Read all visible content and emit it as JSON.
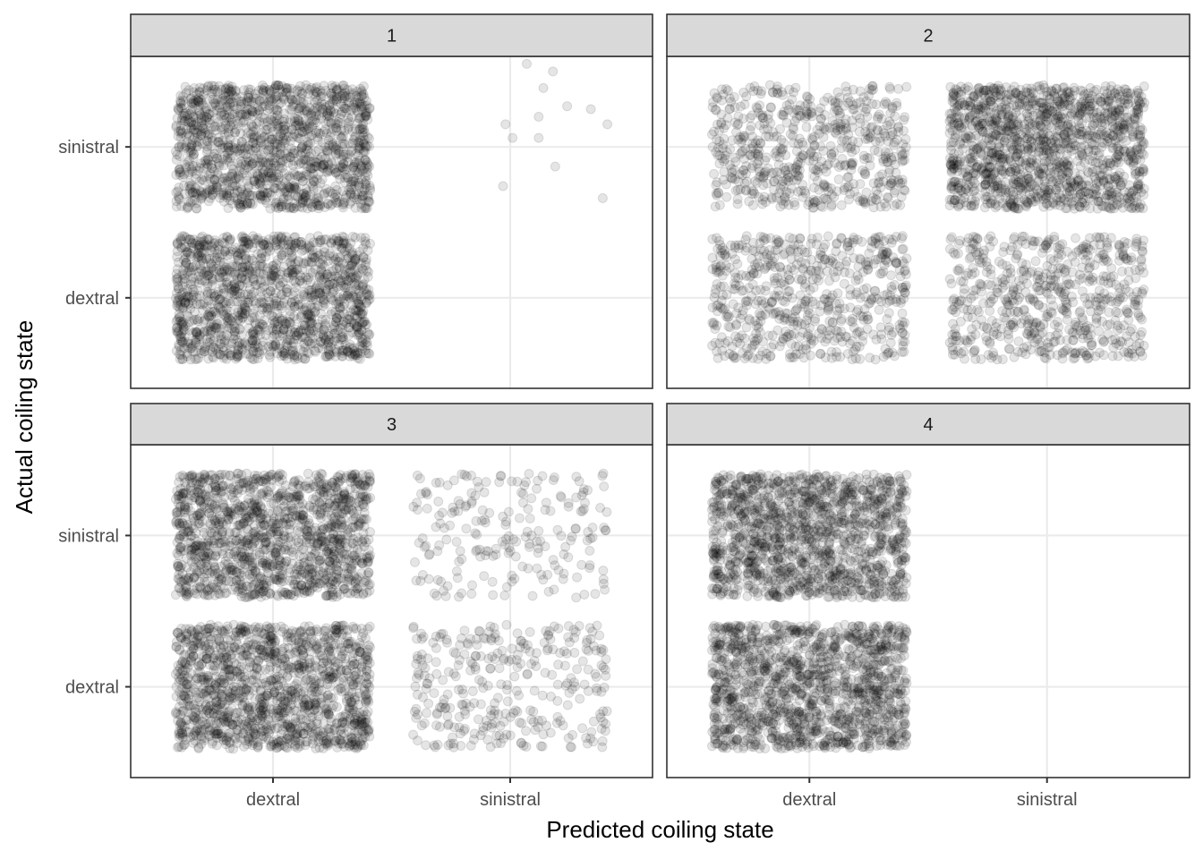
{
  "chart_data": {
    "type": "scatter",
    "subtype": "jittered faceted scatter",
    "facet_layout": "2x2",
    "xlabel": "Predicted coiling state",
    "ylabel": "Actual coiling state",
    "x_categories": [
      "dextral",
      "sinistral"
    ],
    "y_categories": [
      "dextral",
      "sinistral"
    ],
    "grid": true,
    "legend": "none",
    "point_color": "#000000",
    "panels": [
      {
        "label": "1",
        "cells": [
          {
            "predicted": "dextral",
            "actual": "sinistral",
            "shade": "dense"
          },
          {
            "predicted": "dextral",
            "actual": "dextral",
            "shade": "dense"
          },
          {
            "predicted": "sinistral",
            "actual": "sinistral",
            "shade": "sparse",
            "points": [
              [
                0.07,
                0.55
              ],
              [
                0.12,
                0.06
              ],
              [
                0.12,
                0.2
              ],
              [
                0.19,
                -0.13
              ],
              [
                0.14,
                0.39
              ],
              [
                0.18,
                0.5
              ],
              [
                0.34,
                0.25
              ],
              [
                0.24,
                0.27
              ],
              [
                0.39,
                -0.34
              ],
              [
                0.41,
                0.15
              ],
              [
                -0.03,
                -0.26
              ],
              [
                -0.02,
                0.15
              ],
              [
                0.01,
                0.06
              ]
            ]
          }
        ]
      },
      {
        "label": "2",
        "cells": [
          {
            "predicted": "dextral",
            "actual": "sinistral",
            "shade": "medium"
          },
          {
            "predicted": "dextral",
            "actual": "dextral",
            "shade": "medium"
          },
          {
            "predicted": "sinistral",
            "actual": "sinistral",
            "shade": "dense"
          },
          {
            "predicted": "sinistral",
            "actual": "dextral",
            "shade": "medium"
          }
        ]
      },
      {
        "label": "3",
        "cells": [
          {
            "predicted": "dextral",
            "actual": "sinistral",
            "shade": "dense"
          },
          {
            "predicted": "dextral",
            "actual": "dextral",
            "shade": "dense"
          },
          {
            "predicted": "sinistral",
            "actual": "sinistral",
            "shade": "sparse"
          },
          {
            "predicted": "sinistral",
            "actual": "dextral",
            "shade": "light"
          }
        ]
      },
      {
        "label": "4",
        "cells": [
          {
            "predicted": "dextral",
            "actual": "sinistral",
            "shade": "dense"
          },
          {
            "predicted": "dextral",
            "actual": "dextral",
            "shade": "dense"
          }
        ]
      }
    ]
  }
}
